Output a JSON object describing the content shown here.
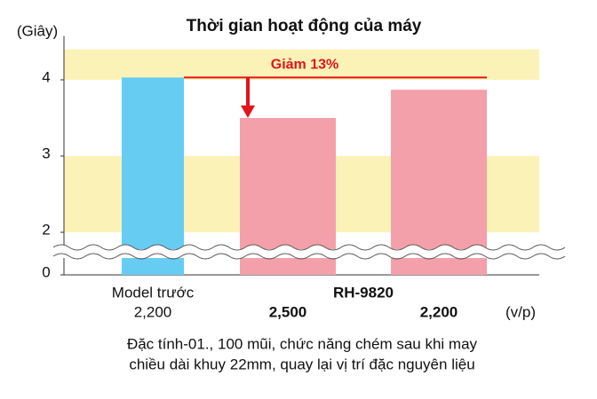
{
  "chart_data": {
    "type": "bar",
    "title": "Thời gian hoạt động của máy",
    "y_label": "(Giây)",
    "x_unit": "(v/p)",
    "categories": [
      "2,200",
      "2,500",
      "2,200"
    ],
    "series": [
      {
        "name": "Model trước",
        "color": "#66ccf2",
        "values": [
          4.03,
          null,
          null
        ]
      },
      {
        "name": "RH-9820",
        "color": "#f4a0aa",
        "values": [
          null,
          3.5,
          3.87
        ]
      }
    ],
    "ylim": [
      0,
      4.4
    ],
    "yticks": [
      0,
      2,
      3,
      4
    ],
    "axis_break": [
      0,
      2
    ],
    "stripe_color": "#fbf2b8",
    "annotation": {
      "text": "Giảm 13%",
      "color": "#e3141b"
    },
    "note": [
      "Đặc tính-01., 100 mũi, chức năng chém sau khi may",
      "chiều dài khuy 22mm, quay lại vị trí đặc nguyên liệu"
    ]
  }
}
